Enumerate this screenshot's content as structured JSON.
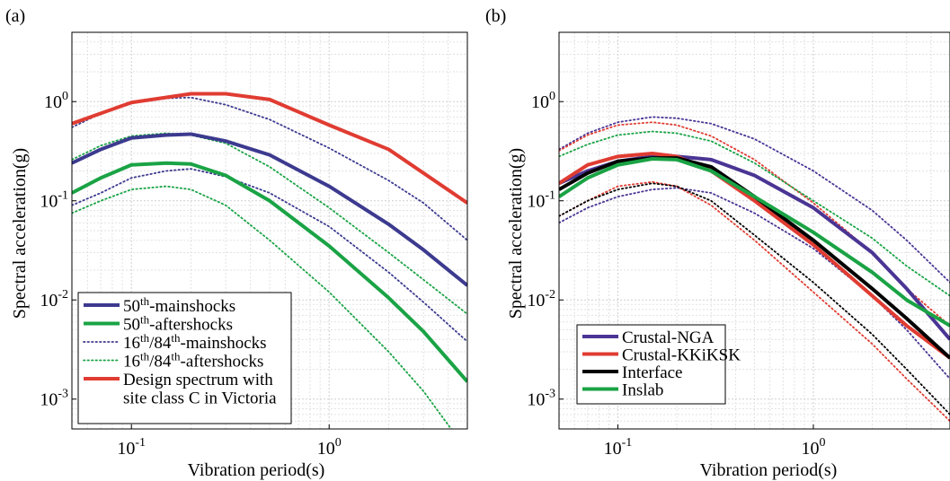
{
  "chart_data": [
    {
      "type": "line",
      "panel_label": "(a)",
      "xlabel": "Vibration period(s)",
      "ylabel": "Spectral acceleration(g)",
      "xscale": "log",
      "yscale": "log",
      "xlim": [
        0.05,
        5
      ],
      "ylim": [
        0.0005,
        5
      ],
      "xticks": [
        {
          "value": 0.1,
          "base": "10",
          "exp": "-1"
        },
        {
          "value": 1,
          "base": "10",
          "exp": "0"
        }
      ],
      "yticks": [
        {
          "value": 1,
          "base": "10",
          "exp": "0"
        },
        {
          "value": 0.1,
          "base": "10",
          "exp": "-1"
        },
        {
          "value": 0.01,
          "base": "10",
          "exp": "-2"
        },
        {
          "value": 0.001,
          "base": "10",
          "exp": "-3"
        }
      ],
      "grid": true,
      "legend": "bottom-left",
      "series": [
        {
          "name_main": "50",
          "name_sup": "th",
          "name_rest": "-mainshocks",
          "color": "#3c3a8f",
          "style": "solid",
          "x": [
            0.05,
            0.07,
            0.1,
            0.15,
            0.2,
            0.3,
            0.5,
            1,
            2,
            3,
            5
          ],
          "y": [
            0.24,
            0.33,
            0.43,
            0.46,
            0.47,
            0.4,
            0.29,
            0.14,
            0.058,
            0.032,
            0.014
          ]
        },
        {
          "name_main": "50",
          "name_sup": "th",
          "name_rest": "-aftershocks",
          "color": "#1aa345",
          "style": "solid",
          "x": [
            0.05,
            0.07,
            0.1,
            0.15,
            0.2,
            0.3,
            0.5,
            1,
            2,
            3,
            5
          ],
          "y": [
            0.12,
            0.17,
            0.23,
            0.24,
            0.235,
            0.18,
            0.1,
            0.035,
            0.0105,
            0.0048,
            0.0015
          ]
        },
        {
          "name_main": "16",
          "name_sup": "th",
          "name_rest": "/84th-mainshocks",
          "sup2": "th",
          "color": "#3c3a8f",
          "style": "dotted",
          "x": [
            0.05,
            0.07,
            0.1,
            0.15,
            0.2,
            0.3,
            0.5,
            1,
            2,
            3,
            5
          ],
          "y": [
            0.55,
            0.76,
            0.97,
            1.08,
            1.1,
            0.93,
            0.66,
            0.34,
            0.16,
            0.095,
            0.04
          ]
        },
        {
          "name_main": "16",
          "name_sup": "th",
          "name_rest": "/84th-aftershocks",
          "sup2": "th",
          "color": "#1aa345",
          "style": "dotted",
          "x": [
            0.05,
            0.07,
            0.1,
            0.15,
            0.2,
            0.3,
            0.5,
            1,
            2,
            3,
            5
          ],
          "y": [
            0.26,
            0.36,
            0.45,
            0.48,
            0.46,
            0.38,
            0.22,
            0.085,
            0.03,
            0.016,
            0.0072
          ]
        },
        {
          "color": "#3c3a8f",
          "style": "dotted",
          "legend": false,
          "x": [
            0.05,
            0.07,
            0.1,
            0.15,
            0.2,
            0.3,
            0.5,
            1,
            2,
            3,
            5
          ],
          "y": [
            0.09,
            0.12,
            0.17,
            0.2,
            0.21,
            0.175,
            0.12,
            0.055,
            0.019,
            0.0095,
            0.0038
          ]
        },
        {
          "color": "#1aa345",
          "style": "dotted",
          "legend": false,
          "x": [
            0.05,
            0.07,
            0.1,
            0.15,
            0.2,
            0.3,
            0.5,
            1,
            2,
            3,
            5
          ],
          "y": [
            0.075,
            0.1,
            0.13,
            0.14,
            0.13,
            0.09,
            0.04,
            0.012,
            0.003,
            0.0012,
            0.0003
          ]
        },
        {
          "name_main": "Design spectrum with",
          "name_line2": "site class C in Victoria",
          "color": "#e03c32",
          "style": "solid",
          "x": [
            0.05,
            0.1,
            0.2,
            0.3,
            0.5,
            1,
            2,
            5
          ],
          "y": [
            0.6,
            0.98,
            1.2,
            1.2,
            1.05,
            0.58,
            0.33,
            0.095
          ]
        }
      ]
    },
    {
      "type": "line",
      "panel_label": "(b)",
      "xlabel": "Vibration period(s)",
      "ylabel": "Spectral acceleration(g)",
      "xscale": "log",
      "yscale": "log",
      "xlim": [
        0.05,
        5
      ],
      "ylim": [
        0.0005,
        5
      ],
      "xticks": [
        {
          "value": 0.1,
          "base": "10",
          "exp": "-1"
        },
        {
          "value": 1,
          "base": "10",
          "exp": "0"
        }
      ],
      "yticks": [
        {
          "value": 1,
          "base": "10",
          "exp": "0"
        },
        {
          "value": 0.1,
          "base": "10",
          "exp": "-1"
        },
        {
          "value": 0.01,
          "base": "10",
          "exp": "-2"
        },
        {
          "value": 0.001,
          "base": "10",
          "exp": "-3"
        }
      ],
      "grid": true,
      "legend": "bottom-left",
      "series": [
        {
          "name_main": "Crustal-NGA",
          "color": "#4a3594",
          "style": "solid",
          "x": [
            0.05,
            0.07,
            0.1,
            0.15,
            0.2,
            0.3,
            0.5,
            1,
            2,
            3,
            5
          ],
          "y": [
            0.15,
            0.2,
            0.25,
            0.28,
            0.28,
            0.26,
            0.18,
            0.085,
            0.03,
            0.013,
            0.004
          ]
        },
        {
          "name_main": "Crustal-KKiKSK",
          "color": "#e03c32",
          "style": "solid",
          "x": [
            0.05,
            0.07,
            0.1,
            0.15,
            0.2,
            0.3,
            0.5,
            1,
            2,
            3,
            5
          ],
          "y": [
            0.15,
            0.23,
            0.28,
            0.3,
            0.28,
            0.2,
            0.1,
            0.036,
            0.011,
            0.0055,
            0.0026
          ]
        },
        {
          "name_main": "Interface",
          "color": "#000000",
          "style": "solid",
          "x": [
            0.05,
            0.07,
            0.1,
            0.15,
            0.2,
            0.3,
            0.5,
            1,
            2,
            3,
            5
          ],
          "y": [
            0.13,
            0.19,
            0.25,
            0.27,
            0.27,
            0.22,
            0.11,
            0.04,
            0.013,
            0.0065,
            0.0026
          ]
        },
        {
          "name_main": "Inslab",
          "color": "#1aa345",
          "style": "solid",
          "x": [
            0.05,
            0.07,
            0.1,
            0.15,
            0.2,
            0.3,
            0.5,
            1,
            2,
            3,
            5
          ],
          "y": [
            0.11,
            0.17,
            0.23,
            0.265,
            0.26,
            0.2,
            0.11,
            0.048,
            0.019,
            0.01,
            0.0055
          ]
        },
        {
          "color": "#4a3594",
          "style": "dotted",
          "legend": false,
          "x": [
            0.05,
            0.07,
            0.1,
            0.15,
            0.2,
            0.3,
            0.5,
            1,
            2,
            3,
            5
          ],
          "y": [
            0.33,
            0.48,
            0.62,
            0.7,
            0.68,
            0.6,
            0.42,
            0.2,
            0.08,
            0.04,
            0.015
          ]
        },
        {
          "color": "#4a3594",
          "style": "dotted",
          "legend": false,
          "x": [
            0.05,
            0.07,
            0.1,
            0.15,
            0.2,
            0.3,
            0.5,
            1,
            2,
            3,
            5
          ],
          "y": [
            0.06,
            0.085,
            0.11,
            0.13,
            0.135,
            0.12,
            0.075,
            0.033,
            0.011,
            0.005,
            0.0016
          ]
        },
        {
          "color": "#e03c32",
          "style": "dotted",
          "legend": false,
          "x": [
            0.05,
            0.07,
            0.1,
            0.15,
            0.2,
            0.3,
            0.5,
            1,
            2,
            3,
            5
          ],
          "y": [
            0.32,
            0.46,
            0.58,
            0.62,
            0.58,
            0.45,
            0.26,
            0.095,
            0.03,
            0.013,
            0.0055
          ]
        },
        {
          "color": "#e03c32",
          "style": "dotted",
          "legend": false,
          "x": [
            0.05,
            0.07,
            0.1,
            0.15,
            0.2,
            0.3,
            0.5,
            1,
            2,
            3,
            5
          ],
          "y": [
            0.07,
            0.1,
            0.14,
            0.155,
            0.14,
            0.09,
            0.04,
            0.012,
            0.0036,
            0.0016,
            0.0006
          ]
        },
        {
          "color": "#000000",
          "style": "dotted",
          "legend": false,
          "x": [
            0.05,
            0.07,
            0.1,
            0.15,
            0.2,
            0.3,
            0.5,
            1,
            2,
            3,
            5
          ],
          "y": [
            0.07,
            0.1,
            0.13,
            0.15,
            0.14,
            0.1,
            0.045,
            0.015,
            0.0045,
            0.002,
            0.0007
          ]
        },
        {
          "color": "#1aa345",
          "style": "dotted",
          "legend": false,
          "x": [
            0.05,
            0.07,
            0.1,
            0.15,
            0.2,
            0.3,
            0.5,
            1,
            2,
            3,
            5
          ],
          "y": [
            0.28,
            0.37,
            0.46,
            0.5,
            0.48,
            0.4,
            0.24,
            0.1,
            0.042,
            0.022,
            0.011
          ]
        }
      ]
    }
  ]
}
